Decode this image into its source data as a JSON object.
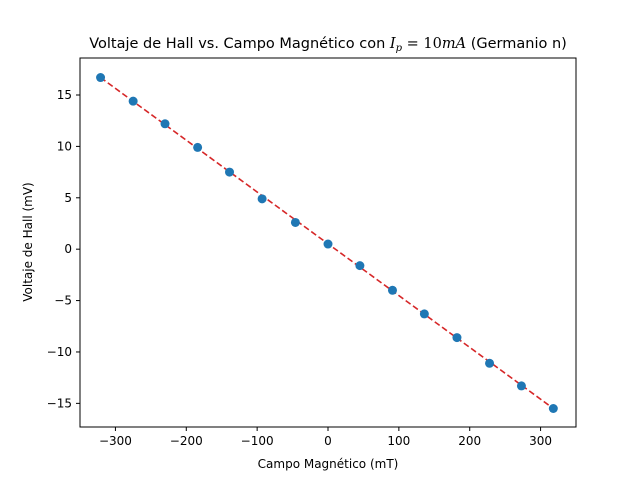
{
  "chart_data": {
    "type": "scatter",
    "title": {
      "pre": "Voltaje de Hall vs. Campo Magnético con ",
      "math_var": "I",
      "math_sub": "p",
      "math_rest": " = 10",
      "math_unit": "mA",
      "post": " (Germanio n)"
    },
    "xlabel": "Campo Magnético (mT)",
    "ylabel": "Voltaje de Hall (mV)",
    "xlim": [
      -350,
      350
    ],
    "ylim": [
      -17.3,
      18.6
    ],
    "xticks": [
      -300,
      -200,
      -100,
      0,
      100,
      200,
      300
    ],
    "xtick_labels": [
      "−300",
      "−200",
      "−100",
      "0",
      "100",
      "200",
      "300"
    ],
    "yticks": [
      -15,
      -10,
      -5,
      0,
      5,
      10,
      15
    ],
    "ytick_labels": [
      "−15",
      "−10",
      "−5",
      "0",
      "5",
      "10",
      "15"
    ],
    "grid": false,
    "legend": "none",
    "series": [
      {
        "kind": "points",
        "color": "#1f77b4",
        "x": [
          -321,
          -275,
          -230,
          -184,
          -139,
          -93,
          -46,
          0,
          45,
          91,
          136,
          182,
          228,
          273,
          318
        ],
        "y": [
          16.7,
          14.4,
          12.2,
          9.9,
          7.5,
          4.9,
          2.6,
          0.5,
          -1.6,
          -4.0,
          -6.3,
          -8.6,
          -11.1,
          -13.3,
          -15.5
        ]
      },
      {
        "kind": "fit-line",
        "color": "#d62728",
        "dash": "dashed",
        "x": [
          -321,
          318
        ],
        "y": [
          16.7,
          -15.5
        ]
      }
    ]
  }
}
